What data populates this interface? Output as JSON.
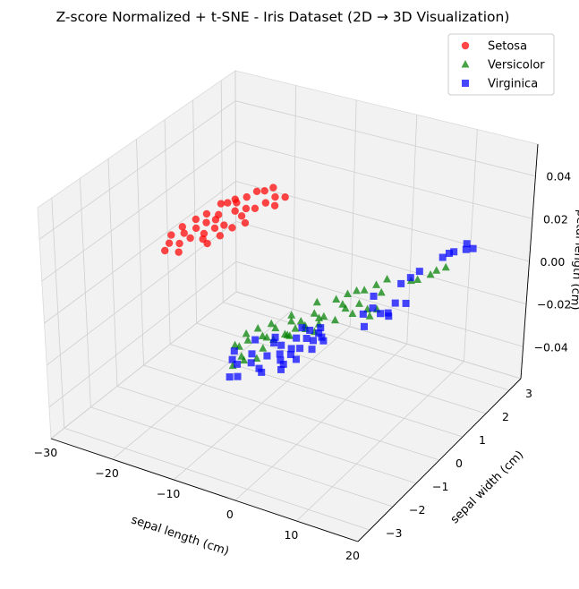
{
  "chart_data": {
    "type": "scatter",
    "title": "Z-score Normalized + t-SNE - Iris Dataset (2D → 3D Visualization)",
    "xlabel": "sepal length (cm)",
    "ylabel": "sepal width (cm)",
    "zlabel": "petal length (cm)",
    "xlim": [
      -30,
      20
    ],
    "ylim": [
      -3.5,
      3.5
    ],
    "zlim": [
      -0.055,
      0.055
    ],
    "x_ticks": [
      "−30",
      "−20",
      "−10",
      "0",
      "10",
      "20"
    ],
    "y_ticks": [
      "−3",
      "−2",
      "−1",
      "0",
      "1",
      "2",
      "3"
    ],
    "z_ticks": [
      "−0.04",
      "−0.02",
      "0.00",
      "0.02",
      "0.04"
    ],
    "grid": true,
    "legend_position": "top-right",
    "series": [
      {
        "name": "Setosa",
        "color": "#ff0000",
        "marker": "circle",
        "points": [
          [
            -28.9,
            0.8
          ],
          [
            -28.8,
            1.2
          ],
          [
            -28.3,
            1.6
          ],
          [
            -27.9,
            0.5
          ],
          [
            -27.8,
            1.9
          ],
          [
            -27.6,
            1.0
          ],
          [
            -27.6,
            2.4
          ],
          [
            -27.3,
            0.2
          ],
          [
            -26.9,
            1.3
          ],
          [
            -26.9,
            2.5
          ],
          [
            -26.6,
            0.6
          ],
          [
            -26.5,
            1.6
          ],
          [
            -26.5,
            2.7
          ],
          [
            -26.2,
            2.0
          ],
          [
            -26.1,
            0.9
          ],
          [
            -25.8,
            2.6
          ],
          [
            -25.8,
            1.8
          ],
          [
            -25.4,
            2.9
          ],
          [
            -25.4,
            0.3
          ],
          [
            -25.1,
            1.2
          ],
          [
            -25.0,
            3.2
          ],
          [
            -24.7,
            2.3
          ],
          [
            -24.6,
            1.5
          ],
          [
            -24.4,
            1.0
          ],
          [
            -24.1,
            3.3
          ],
          [
            -23.9,
            1.7
          ],
          [
            -23.7,
            2.5
          ],
          [
            -23.5,
            3.5
          ],
          [
            -23.2,
            0.9
          ],
          [
            -23.1,
            2.2
          ],
          [
            -22.8,
            1.3
          ],
          [
            -22.6,
            2.6
          ],
          [
            -22.5,
            1.7
          ],
          [
            -22.1,
            2.9
          ],
          [
            -21.8,
            3.2
          ],
          [
            -21.6,
            2.0
          ],
          [
            -20.5,
            3.3
          ],
          [
            -20.5,
            2.9
          ]
        ]
      },
      {
        "name": "Versicolor",
        "color": "#008000",
        "marker": "triangle",
        "points": [
          [
            -5.5,
            -1.7
          ],
          [
            -5.3,
            -2.2
          ],
          [
            -4.8,
            -1.4
          ],
          [
            -4.6,
            -2.2
          ],
          [
            -4.4,
            -1.9
          ],
          [
            -3.8,
            -1.1
          ],
          [
            -3.2,
            -1.6
          ],
          [
            -3.0,
            -2.5
          ],
          [
            -2.8,
            -2.9
          ],
          [
            -2.7,
            -1.2
          ],
          [
            -2.5,
            -0.6
          ],
          [
            -2.5,
            -1.6
          ],
          [
            -2.2,
            -2.6
          ],
          [
            -1.7,
            -0.8
          ],
          [
            -1.5,
            -2.0
          ],
          [
            -1.4,
            -1.6
          ],
          [
            -1.1,
            0.1
          ],
          [
            -0.9,
            -2.4
          ],
          [
            -0.7,
            -1.3
          ],
          [
            -0.5,
            -0.7
          ],
          [
            -0.3,
            -1.3
          ],
          [
            -0.2,
            -1.0
          ],
          [
            0.1,
            -0.3
          ],
          [
            0.1,
            -1.3
          ],
          [
            0.6,
            -0.8
          ],
          [
            0.9,
            0.4
          ],
          [
            1.1,
            -0.9
          ],
          [
            1.3,
            -0.4
          ],
          [
            1.6,
            0.7
          ],
          [
            1.7,
            -0.3
          ],
          [
            2.1,
            -0.6
          ],
          [
            2.3,
            0.9
          ],
          [
            2.4,
            0.3
          ],
          [
            2.6,
            -0.9
          ],
          [
            3.2,
            1.0
          ],
          [
            3.3,
            0.2
          ],
          [
            3.6,
            -0.3
          ],
          [
            4.0,
            1.3
          ],
          [
            4.4,
            0.5
          ],
          [
            4.6,
            1.6
          ],
          [
            4.9,
            0.1
          ],
          [
            5.7,
            1.1
          ],
          [
            6.2,
            0.4
          ],
          [
            7.4,
            0.2
          ],
          [
            7.4,
            0.5
          ],
          [
            7.9,
            1.8
          ],
          [
            8.6,
            1.9
          ],
          [
            9.6,
            2.2
          ],
          [
            9.8,
            2.4
          ],
          [
            10.6,
            2.6
          ]
        ]
      },
      {
        "name": "Virginica",
        "color": "#0000ff",
        "marker": "square",
        "points": [
          [
            -4.6,
            -2.4
          ],
          [
            -3.7,
            -2.7
          ],
          [
            -3.6,
            -1.8
          ],
          [
            -2.5,
            -2.8
          ],
          [
            -2.1,
            -2.3
          ],
          [
            -1.7,
            -3.3
          ],
          [
            -1.5,
            -1.5
          ],
          [
            -1.0,
            -2.6
          ],
          [
            -0.9,
            -1.7
          ],
          [
            -0.8,
            -3.2
          ],
          [
            0.0,
            -2.2
          ],
          [
            0.3,
            -1.7
          ],
          [
            0.5,
            -0.9
          ],
          [
            0.7,
            -2.7
          ],
          [
            1.2,
            -1.3
          ],
          [
            1.3,
            -2.0
          ],
          [
            1.5,
            -2.8
          ],
          [
            1.8,
            -0.9
          ],
          [
            2.0,
            -1.7
          ],
          [
            2.2,
            -2.2
          ],
          [
            2.5,
            -1.2
          ],
          [
            2.7,
            -1.9
          ],
          [
            2.8,
            -0.7
          ],
          [
            3.0,
            -1.6
          ],
          [
            3.1,
            -2.3
          ],
          [
            3.3,
            -0.9
          ],
          [
            3.5,
            -2.5
          ],
          [
            3.6,
            -1.2
          ],
          [
            4.0,
            -2.0
          ],
          [
            4.2,
            -1.0
          ],
          [
            4.6,
            -1.5
          ],
          [
            4.9,
            -1.1
          ],
          [
            5.2,
            0.9
          ],
          [
            6.3,
            0.2
          ],
          [
            6.7,
            0.5
          ],
          [
            7.0,
            1.6
          ],
          [
            7.4,
            1.9
          ],
          [
            7.7,
            2.2
          ],
          [
            8.1,
            -0.2
          ],
          [
            8.4,
            0.4
          ],
          [
            8.8,
            2.9
          ],
          [
            8.9,
            0.9
          ],
          [
            9.1,
            3.1
          ],
          [
            9.3,
            0.5
          ],
          [
            9.5,
            3.2
          ],
          [
            9.8,
            0.4
          ],
          [
            10.1,
            3.6
          ],
          [
            10.3,
            1.0
          ],
          [
            10.8,
            3.4
          ],
          [
            11.6,
            3.5
          ]
        ]
      }
    ]
  }
}
